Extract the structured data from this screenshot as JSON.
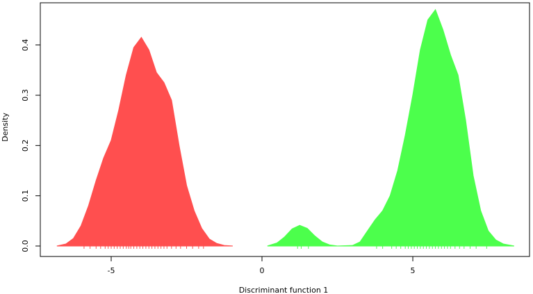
{
  "chart_data": {
    "type": "area",
    "xlabel": "Discriminant function 1",
    "ylabel": "Density",
    "xlim": [
      -7.35,
      8.87
    ],
    "ylim": [
      -0.0208,
      0.484
    ],
    "xticks": [
      -5,
      0,
      5
    ],
    "yticks": [
      {
        "value": 0,
        "label": "0.0"
      },
      0.1,
      0.2,
      0.3,
      0.4
    ],
    "series": [
      {
        "color": "#ff4f4f",
        "x": [
          -6.8,
          -6.5,
          -6.25,
          -6.0,
          -5.75,
          -5.5,
          -5.25,
          -5.0,
          -4.75,
          -4.5,
          -4.25,
          -4.0,
          -3.75,
          -3.5,
          -3.25,
          -3.0,
          -2.75,
          -2.5,
          -2.25,
          -2.0,
          -1.75,
          -1.5,
          -1.25,
          -0.97
        ],
        "values": [
          0.0,
          0.004,
          0.015,
          0.04,
          0.08,
          0.13,
          0.175,
          0.21,
          0.27,
          0.34,
          0.395,
          0.415,
          0.39,
          0.345,
          0.325,
          0.29,
          0.2,
          0.12,
          0.07,
          0.035,
          0.014,
          0.005,
          0.001,
          0.0
        ],
        "rug": [
          -5.9,
          -5.7,
          -5.5,
          -5.35,
          -5.2,
          -5.1,
          -5.0,
          -4.9,
          -4.8,
          -4.7,
          -4.6,
          -4.5,
          -4.42,
          -4.35,
          -4.25,
          -4.15,
          -4.05,
          -3.95,
          -3.85,
          -3.75,
          -3.65,
          -3.55,
          -3.45,
          -3.35,
          -3.25,
          -3.15,
          -3.0,
          -2.85,
          -2.7,
          -2.5,
          -2.3,
          -2.1,
          -1.94
        ]
      },
      {
        "color": "#4cff4c",
        "x": [
          0.18,
          0.5,
          0.75,
          1.0,
          1.25,
          1.5,
          1.75,
          2.0,
          2.25,
          2.5,
          3.0,
          3.25,
          3.5,
          3.75,
          4.0,
          4.25,
          4.5,
          4.75,
          5.0,
          5.25,
          5.5,
          5.75,
          6.0,
          6.25,
          6.5,
          6.75,
          7.0,
          7.25,
          7.5,
          7.75,
          8.0,
          8.36
        ],
        "values": [
          0.0,
          0.006,
          0.018,
          0.034,
          0.041,
          0.035,
          0.02,
          0.008,
          0.002,
          0.0,
          0.001,
          0.008,
          0.03,
          0.052,
          0.07,
          0.1,
          0.15,
          0.22,
          0.3,
          0.39,
          0.45,
          0.47,
          0.43,
          0.38,
          0.34,
          0.25,
          0.14,
          0.07,
          0.03,
          0.012,
          0.004,
          0.0
        ],
        "rug": [
          1.18,
          1.3,
          1.54,
          3.8,
          4.0,
          4.3,
          4.45,
          4.6,
          4.75,
          4.85,
          4.95,
          5.05,
          5.15,
          5.25,
          5.35,
          5.45,
          5.55,
          5.65,
          5.75,
          5.85,
          5.95,
          6.05,
          6.15,
          6.25,
          6.4,
          6.55,
          6.7,
          6.9,
          7.1,
          7.45
        ]
      }
    ]
  }
}
